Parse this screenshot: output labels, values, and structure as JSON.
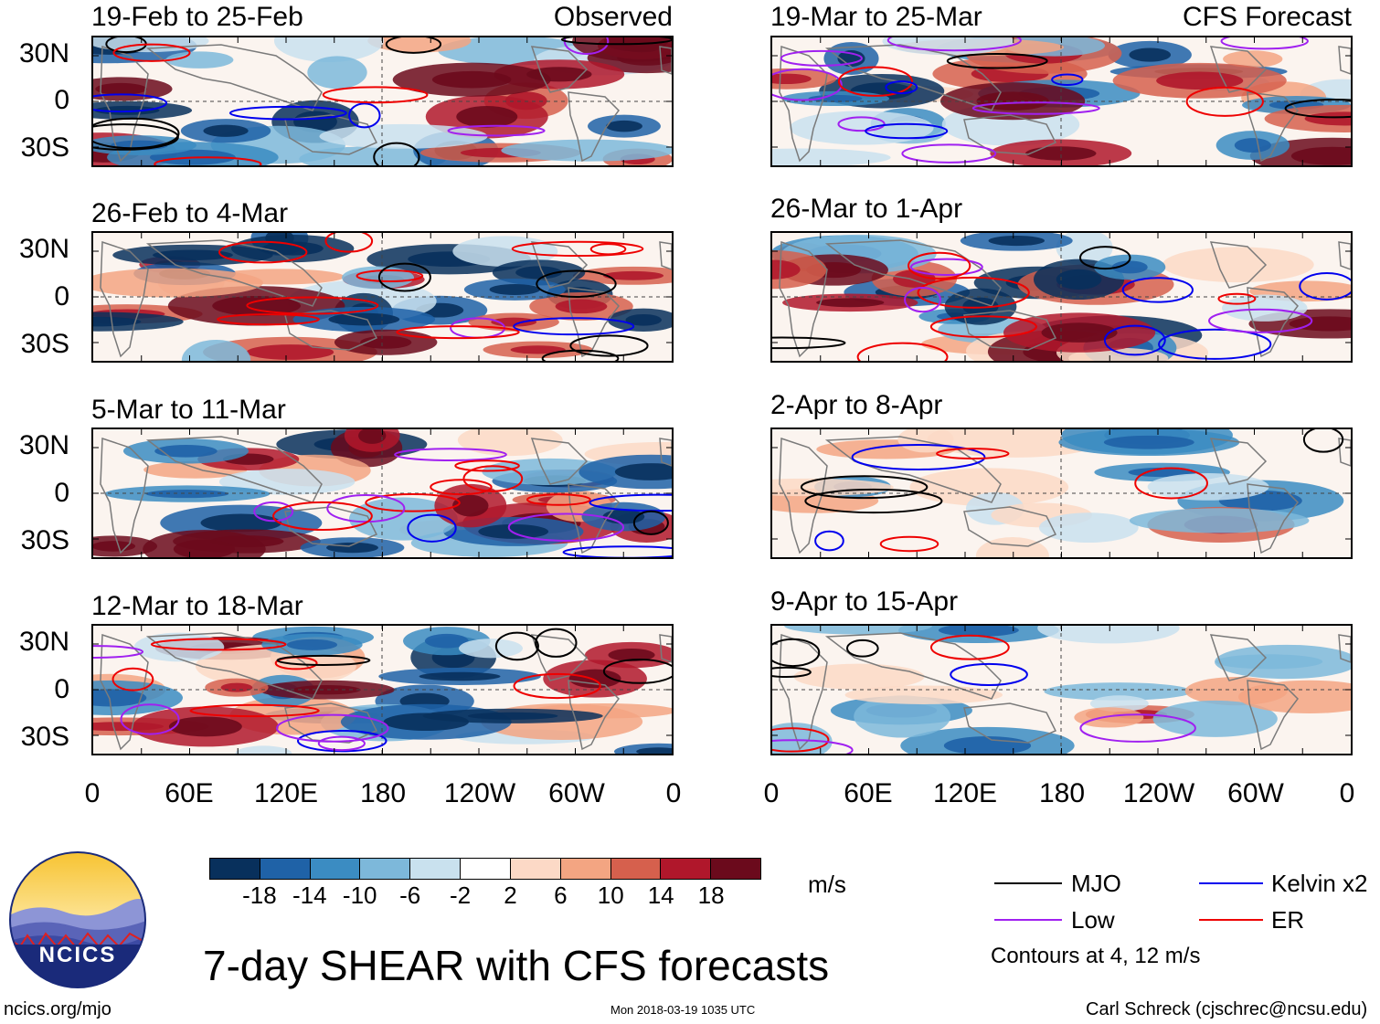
{
  "main_title": "7-day SHEAR with CFS forecasts",
  "column_labels": {
    "left": "Observed",
    "right": "CFS Forecast"
  },
  "panels": {
    "left": [
      "19-Feb to 25-Feb",
      "26-Feb to 4-Mar",
      "5-Mar to 11-Mar",
      "12-Mar to 18-Mar"
    ],
    "right": [
      "19-Mar to 25-Mar",
      "26-Mar to 1-Apr",
      "2-Apr to 8-Apr",
      "9-Apr to 15-Apr"
    ]
  },
  "y_ticks": [
    "30N",
    "0",
    "30S"
  ],
  "x_ticks": [
    "0",
    "60E",
    "120E",
    "180",
    "120W",
    "60W",
    "0"
  ],
  "colorbar": {
    "unit": "m/s",
    "labels": [
      "-18",
      "-14",
      "-10",
      "-6",
      "-2",
      "2",
      "6",
      "10",
      "14",
      "18"
    ],
    "colors": [
      "#08305c",
      "#1f62a7",
      "#3b8cc2",
      "#7db8da",
      "#c9e1ee",
      "#ffffff",
      "#fcd9c6",
      "#f3a582",
      "#d6604d",
      "#b0172b",
      "#6b0a1c"
    ]
  },
  "legend": {
    "items": [
      {
        "label": "MJO",
        "color": "#000000"
      },
      {
        "label": "Kelvin x2",
        "color": "#0000ee"
      },
      {
        "label": "Low",
        "color": "#a020f0"
      },
      {
        "label": "ER",
        "color": "#ee0000"
      }
    ],
    "note": "Contours at 4, 12 m/s"
  },
  "logo": {
    "text": "NCICS"
  },
  "footer": {
    "url": "ncics.org/mjo",
    "timestamp": "Mon 2018-03-19 1035 UTC",
    "credit": "Carl Schreck (cjschrec@ncsu.edu)"
  }
}
